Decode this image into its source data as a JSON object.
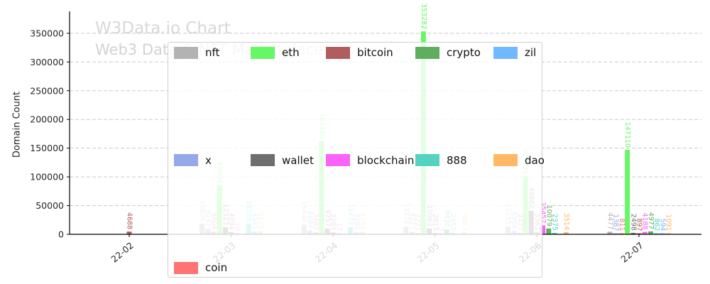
{
  "chart_data": {
    "type": "bar",
    "title": "W3Data.io Chart",
    "subtitle": "Web3 Data & NFT Marketplace",
    "ylabel": "Domain Count",
    "xlabel": "",
    "grid": "horizontal-dashed",
    "legend_position": "center-overlay",
    "ylim": [
      0,
      380000
    ],
    "yticks": [
      0,
      50000,
      100000,
      150000,
      200000,
      250000,
      300000,
      350000
    ],
    "categories": [
      "22-02",
      "22-03",
      "22-04",
      "22-05",
      "22-06",
      "22-07"
    ],
    "series": [
      {
        "name": "nft",
        "color": "#b3b3b3",
        "values": [
          null,
          18606,
          16840,
          13378,
          13115,
          4477
        ]
      },
      {
        "name": "x",
        "color": "#94a8ea",
        "values": [
          null,
          9147,
          6684,
          4221,
          5954,
          1387
        ]
      },
      {
        "name": "coin",
        "color": "#ff7373",
        "values": [
          null,
          4604,
          3483,
          2221,
          2427,
          811
        ]
      },
      {
        "name": "eth",
        "color": "#66f766",
        "values": [
          null,
          85004,
          162480,
          353282,
          100791,
          147110
        ]
      },
      {
        "name": "wallet",
        "color": "#6e6e6e",
        "values": [
          null,
          12323,
          9757,
          10063,
          40862,
          2498
        ]
      },
      {
        "name": "bitcoin",
        "color": "#b25d5d",
        "values": [
          4688,
          4094,
          3263,
          2015,
          3361,
          897
        ]
      },
      {
        "name": "blockchain",
        "color": "#f963f9",
        "values": [
          null,
          10,
          13,
          3,
          15457,
          4188
        ]
      },
      {
        "name": "crypto",
        "color": "#5fae5f",
        "values": [
          null,
          null,
          null,
          8420,
          10079,
          4977
        ]
      },
      {
        "name": "888",
        "color": "#54d4c0",
        "values": [
          null,
          18288,
          12472,
          2455,
          2375,
          862
        ]
      },
      {
        "name": "zil",
        "color": "#70b8ff",
        "values": [
          null,
          4542,
          3281,
          null,
          null,
          594
        ]
      },
      {
        "name": "dao",
        "color": "#ffb866",
        "values": [
          null,
          5135,
          4359,
          3067,
          3514,
          1091
        ]
      }
    ],
    "legend_rows": [
      [
        "nft",
        "eth",
        "bitcoin",
        "crypto",
        "zil"
      ],
      [
        "x",
        "wallet",
        "blockchain",
        "888",
        "dao"
      ],
      [
        "coin"
      ]
    ]
  }
}
